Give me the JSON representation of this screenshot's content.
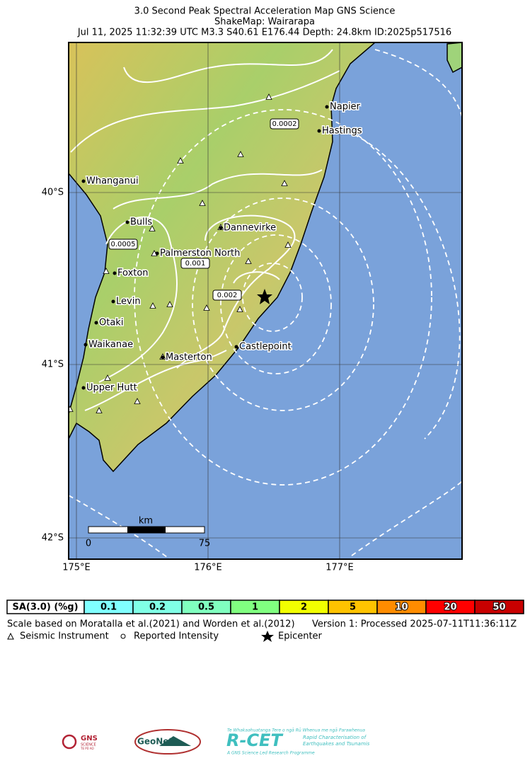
{
  "header": {
    "title_lines": [
      "3.0 Second Peak Spectral Acceleration Map GNS Science",
      "ShakeMap: Wairarapa",
      "Jul 11, 2025 11:32:39 UTC M3.3 S40.61 E176.44 Depth: 24.8km ID:2025p517516"
    ]
  },
  "map": {
    "lat_labels": [
      "40°S",
      "41°S",
      "42°S"
    ],
    "lon_labels": [
      "175°E",
      "176°E",
      "177°E"
    ],
    "cities": [
      "Napier",
      "Hastings",
      "Whanganui",
      "Bulls",
      "Dannevirke",
      "Palmerston North",
      "Foxton",
      "Levin",
      "Otaki",
      "Castlepoint",
      "Waikanae",
      "Masterton",
      "Upper Hutt"
    ],
    "contour_labels": [
      "0.0002",
      "0.0005",
      "0.001",
      "0.002"
    ],
    "scale_bar": {
      "unit": "km",
      "start": "0",
      "end": "75"
    }
  },
  "legend": {
    "title": "SA(3.0) (%g)",
    "bins": [
      {
        "label": "0.1",
        "color": "#80ffff"
      },
      {
        "label": "0.2",
        "color": "#80ffe6"
      },
      {
        "label": "0.5",
        "color": "#80ffbf"
      },
      {
        "label": "1",
        "color": "#80ff80"
      },
      {
        "label": "2",
        "color": "#f2ff00"
      },
      {
        "label": "5",
        "color": "#ffc300"
      },
      {
        "label": "10",
        "color": "#ff8c00"
      },
      {
        "label": "20",
        "color": "#ff0000"
      },
      {
        "label": "50",
        "color": "#c80000"
      }
    ],
    "scale_note": "Scale based on Moratalla et al.(2021) and Worden et al.(2012)",
    "version": "Version 1: Processed 2025-07-11T11:36:11Z",
    "symbols": [
      "Seismic Instrument",
      "Reported Intensity",
      "Epicenter"
    ]
  },
  "logos": {
    "gns": [
      "GNS",
      "SCIENCE",
      "TE PŪ AO"
    ],
    "geonet": "GeoNet",
    "rcet": {
      "name": "R-CET",
      "maori": "Te Whakaahuatanga Tere o ngā Rū Whenua me ngā Parawhenua",
      "line1": "Rapid Characterisation of",
      "line2": "Earthquakes and Tsunamis",
      "footer": "A GNS Science Led Research Programme"
    }
  }
}
